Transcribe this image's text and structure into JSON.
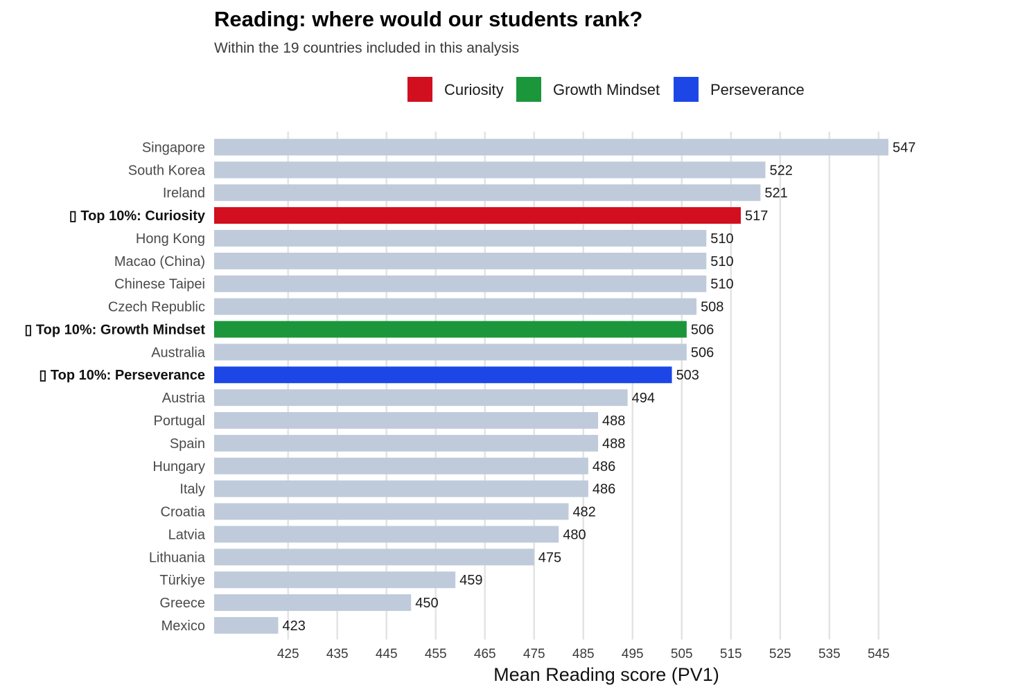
{
  "chart_data": {
    "type": "bar",
    "orientation": "horizontal",
    "title": "Reading: where would our students rank?",
    "subtitle": "Within the 19 countries included in this analysis",
    "xlabel": "Mean Reading score (PV1)",
    "ylabel": "",
    "xlim": [
      410,
      549
    ],
    "xticks": [
      425,
      435,
      445,
      455,
      465,
      475,
      485,
      495,
      505,
      515,
      525,
      535,
      545
    ],
    "grid": "vertical",
    "legend_position": "top-right",
    "legend": [
      {
        "name": "Curiosity",
        "color": "#d10f1f"
      },
      {
        "name": "Growth Mindset",
        "color": "#1b963b"
      },
      {
        "name": "Perseverance",
        "color": "#1c47e6"
      }
    ],
    "default_color": "#bfcbdb",
    "bars": [
      {
        "label": "Singapore",
        "value": 547
      },
      {
        "label": "South Korea",
        "value": 522
      },
      {
        "label": "Ireland",
        "value": 521
      },
      {
        "label": "▯ Top 10%: Curiosity",
        "value": 517,
        "highlight": true,
        "series": "Curiosity"
      },
      {
        "label": "Hong Kong",
        "value": 510
      },
      {
        "label": "Macao (China)",
        "value": 510
      },
      {
        "label": "Chinese Taipei",
        "value": 510
      },
      {
        "label": "Czech Republic",
        "value": 508
      },
      {
        "label": "▯ Top 10%: Growth Mindset",
        "value": 506,
        "highlight": true,
        "series": "Growth Mindset"
      },
      {
        "label": "Australia",
        "value": 506
      },
      {
        "label": "▯ Top 10%: Perseverance",
        "value": 503,
        "highlight": true,
        "series": "Perseverance"
      },
      {
        "label": "Austria",
        "value": 494
      },
      {
        "label": "Portugal",
        "value": 488
      },
      {
        "label": "Spain",
        "value": 488
      },
      {
        "label": "Hungary",
        "value": 486
      },
      {
        "label": "Italy",
        "value": 486
      },
      {
        "label": "Croatia",
        "value": 482
      },
      {
        "label": "Latvia",
        "value": 480
      },
      {
        "label": "Lithuania",
        "value": 475
      },
      {
        "label": "Türkiye",
        "value": 459
      },
      {
        "label": "Greece",
        "value": 450
      },
      {
        "label": "Mexico",
        "value": 423
      }
    ]
  }
}
